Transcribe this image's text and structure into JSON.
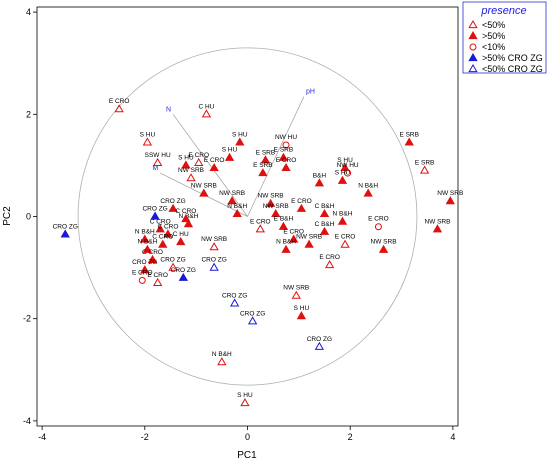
{
  "chart_data": {
    "type": "scatter",
    "xlabel": "PC1",
    "ylabel": "PC2",
    "xlim": [
      -4.1,
      4.1
    ],
    "ylim": [
      -4.1,
      4.1
    ],
    "xticks": [
      -4,
      -2,
      0,
      2,
      4
    ],
    "yticks": [
      -4,
      -2,
      0,
      2,
      4
    ],
    "circle_radius": 3.3,
    "legend": {
      "title": "presence",
      "position": "top-right",
      "entries": [
        {
          "key": "lt50",
          "label": "<50%"
        },
        {
          "key": "gt50",
          "label": ">50%"
        },
        {
          "key": "lt10",
          "label": "<10%"
        },
        {
          "key": "gt50zg",
          "label": ">50% CRO ZG"
        },
        {
          "key": "lt50zg",
          "label": "<50% CRO ZG"
        }
      ]
    },
    "marker_styles": {
      "lt50": {
        "shape": "triangle",
        "fill": "none",
        "stroke": "#e01010"
      },
      "gt50": {
        "shape": "triangle",
        "fill": "#e01010",
        "stroke": "#e01010"
      },
      "lt10": {
        "shape": "circle",
        "fill": "none",
        "stroke": "#e01010"
      },
      "gt50zg": {
        "shape": "triangle",
        "fill": "#1a1ad6",
        "stroke": "#1a1ad6"
      },
      "lt50zg": {
        "shape": "triangle",
        "fill": "none",
        "stroke": "#1a1ad6"
      }
    },
    "vectors": [
      {
        "label": "pH",
        "x": 1.1,
        "y": 2.35
      },
      {
        "label": "N",
        "x": -1.45,
        "y": 2.0
      },
      {
        "label": "M",
        "x": -1.7,
        "y": 0.85
      }
    ],
    "points": [
      {
        "x": -2.5,
        "y": 2.1,
        "cat": "lt50",
        "label": "E CRO"
      },
      {
        "x": -1.95,
        "y": 1.45,
        "cat": "lt50",
        "label": "S HU"
      },
      {
        "x": -0.8,
        "y": 2.0,
        "cat": "lt50",
        "label": "C HU"
      },
      {
        "x": -1.75,
        "y": 1.05,
        "cat": "lt50",
        "label": "SSW HU"
      },
      {
        "x": -1.2,
        "y": 1.0,
        "cat": "gt50",
        "label": "S HU"
      },
      {
        "x": -0.95,
        "y": 1.05,
        "cat": "lt50",
        "label": "E CRO"
      },
      {
        "x": -0.65,
        "y": 0.95,
        "cat": "gt50",
        "label": "E CRO"
      },
      {
        "x": -0.35,
        "y": 1.15,
        "cat": "gt50",
        "label": "S HU"
      },
      {
        "x": -1.1,
        "y": 0.75,
        "cat": "lt50",
        "label": "NW SRB"
      },
      {
        "x": -0.15,
        "y": 1.45,
        "cat": "gt50",
        "label": "S HU"
      },
      {
        "x": 0.35,
        "y": 1.1,
        "cat": "gt50",
        "label": "E SRB"
      },
      {
        "x": 0.75,
        "y": 1.4,
        "cat": "lt10",
        "label": "NW HU"
      },
      {
        "x": 0.7,
        "y": 1.15,
        "cat": "gt50",
        "label": "E SRB"
      },
      {
        "x": 0.75,
        "y": 0.95,
        "cat": "gt50",
        "label": "E CRO"
      },
      {
        "x": 0.3,
        "y": 0.85,
        "cat": "gt50",
        "label": "E SRB"
      },
      {
        "x": 1.9,
        "y": 0.95,
        "cat": "gt50",
        "label": "S HU"
      },
      {
        "x": 1.95,
        "y": 0.85,
        "cat": "lt10",
        "label": "NW HU"
      },
      {
        "x": 1.85,
        "y": 0.7,
        "cat": "gt50",
        "label": "S HU"
      },
      {
        "x": 1.4,
        "y": 0.65,
        "cat": "gt50",
        "label": "B&H"
      },
      {
        "x": 3.15,
        "y": 1.45,
        "cat": "gt50",
        "label": "E SRB"
      },
      {
        "x": 3.45,
        "y": 0.9,
        "cat": "lt50",
        "label": "E SRB"
      },
      {
        "x": 3.95,
        "y": 0.3,
        "cat": "gt50",
        "label": "NW SRB"
      },
      {
        "x": 2.35,
        "y": 0.45,
        "cat": "gt50",
        "label": "N B&H"
      },
      {
        "x": 3.7,
        "y": -0.25,
        "cat": "gt50",
        "label": "NW SRB"
      },
      {
        "x": -0.85,
        "y": 0.45,
        "cat": "gt50",
        "label": "NW SRB"
      },
      {
        "x": -1.45,
        "y": 0.15,
        "cat": "gt50",
        "label": "CRO ZG"
      },
      {
        "x": -1.8,
        "y": 0.0,
        "cat": "gt50zg",
        "label": "CRO ZG"
      },
      {
        "x": -3.55,
        "y": -0.35,
        "cat": "gt50zg",
        "label": "CRO ZG"
      },
      {
        "x": -0.3,
        "y": 0.3,
        "cat": "gt50",
        "label": "NW SRB"
      },
      {
        "x": -0.2,
        "y": 0.05,
        "cat": "gt50",
        "label": "N B&H"
      },
      {
        "x": 0.45,
        "y": 0.25,
        "cat": "gt50",
        "label": "NW SRB"
      },
      {
        "x": 0.55,
        "y": 0.05,
        "cat": "gt50",
        "label": "NW SRB"
      },
      {
        "x": 1.05,
        "y": 0.15,
        "cat": "gt50",
        "label": "E CRO"
      },
      {
        "x": 1.5,
        "y": 0.05,
        "cat": "gt50",
        "label": "C B&H"
      },
      {
        "x": 1.85,
        "y": -0.1,
        "cat": "gt50",
        "label": "N B&H"
      },
      {
        "x": 2.55,
        "y": -0.2,
        "cat": "lt10",
        "label": "E CRO"
      },
      {
        "x": 1.5,
        "y": -0.3,
        "cat": "gt50",
        "label": "C B&H"
      },
      {
        "x": 0.25,
        "y": -0.25,
        "cat": "lt50",
        "label": "E CRO"
      },
      {
        "x": 0.7,
        "y": -0.2,
        "cat": "gt50",
        "label": "E B&H"
      },
      {
        "x": 0.9,
        "y": -0.45,
        "cat": "gt50",
        "label": "E CRO"
      },
      {
        "x": 1.2,
        "y": -0.55,
        "cat": "gt50",
        "label": "NW SRB"
      },
      {
        "x": 0.75,
        "y": -0.65,
        "cat": "gt50",
        "label": "N B&H"
      },
      {
        "x": 1.9,
        "y": -0.55,
        "cat": "lt50",
        "label": "E CRO"
      },
      {
        "x": 2.65,
        "y": -0.65,
        "cat": "gt50",
        "label": "NW SRB"
      },
      {
        "x": 1.6,
        "y": -0.95,
        "cat": "lt50",
        "label": "E CRO"
      },
      {
        "x": -1.7,
        "y": -0.25,
        "cat": "gt50",
        "label": "C CRO"
      },
      {
        "x": -1.15,
        "y": -0.15,
        "cat": "gt50",
        "label": "N B&H"
      },
      {
        "x": -1.2,
        "y": -0.05,
        "cat": "gt50",
        "label": "C CRO"
      },
      {
        "x": -1.55,
        "y": -0.35,
        "cat": "gt50",
        "label": "C CRO"
      },
      {
        "x": -2.0,
        "y": -0.45,
        "cat": "gt50",
        "label": "N B&H"
      },
      {
        "x": -1.65,
        "y": -0.55,
        "cat": "gt50",
        "label": "C CRO"
      },
      {
        "x": -1.3,
        "y": -0.5,
        "cat": "gt50",
        "label": "C HU"
      },
      {
        "x": -0.65,
        "y": -0.6,
        "cat": "lt50",
        "label": "NW SRB"
      },
      {
        "x": -1.95,
        "y": -0.65,
        "cat": "gt50",
        "label": "N B&H"
      },
      {
        "x": -1.85,
        "y": -0.85,
        "cat": "gt50",
        "label": "C CRO"
      },
      {
        "x": -2.0,
        "y": -1.05,
        "cat": "gt50",
        "label": "CRO ZG"
      },
      {
        "x": -1.45,
        "y": -1.0,
        "cat": "lt50",
        "label": "CRO ZG"
      },
      {
        "x": -0.65,
        "y": -1.0,
        "cat": "lt50zg",
        "label": "CRO ZG"
      },
      {
        "x": -2.05,
        "y": -1.25,
        "cat": "lt10",
        "label": "E CRO"
      },
      {
        "x": -1.75,
        "y": -1.3,
        "cat": "lt50",
        "label": "E CRO"
      },
      {
        "x": -1.25,
        "y": -1.2,
        "cat": "gt50zg",
        "label": "CRO ZG"
      },
      {
        "x": -0.25,
        "y": -1.7,
        "cat": "lt50zg",
        "label": "CRO ZG"
      },
      {
        "x": 0.1,
        "y": -2.05,
        "cat": "lt50zg",
        "label": "CRO ZG"
      },
      {
        "x": 0.95,
        "y": -1.55,
        "cat": "lt50",
        "label": "NW SRB"
      },
      {
        "x": 1.05,
        "y": -1.95,
        "cat": "gt50",
        "label": "S HU"
      },
      {
        "x": 1.4,
        "y": -2.55,
        "cat": "lt50zg",
        "label": "CRO ZG"
      },
      {
        "x": -0.5,
        "y": -2.85,
        "cat": "lt50",
        "label": "N B&H"
      },
      {
        "x": -0.05,
        "y": -3.65,
        "cat": "lt50",
        "label": "S HU"
      }
    ]
  }
}
